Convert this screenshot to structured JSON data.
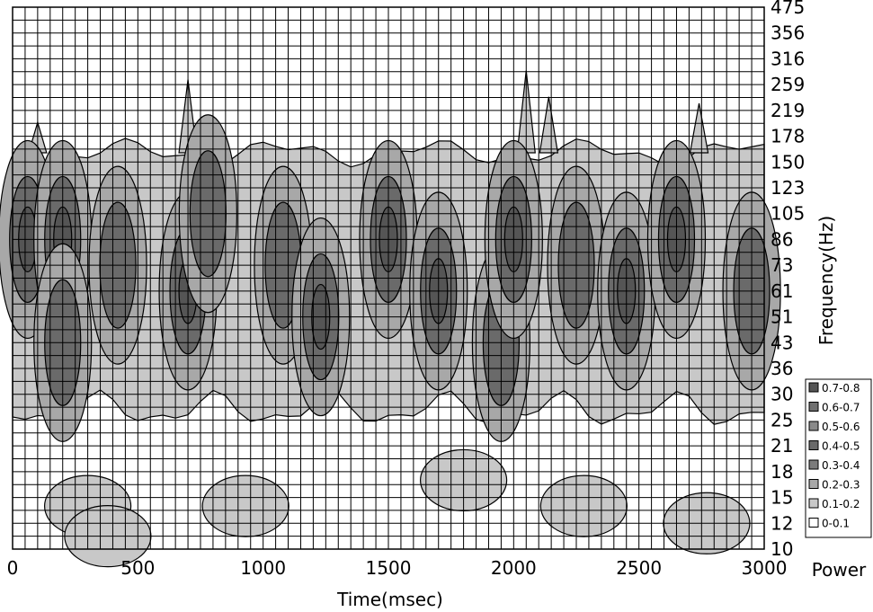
{
  "chart_data": {
    "type": "heatmap",
    "subtype": "contour time-frequency power map",
    "xlabel": "Time(msec)",
    "ylabel": "Frequency(Hz)",
    "legend_title": "Power",
    "legend_placement": "right",
    "grid": true,
    "xlim": [
      0,
      3000
    ],
    "x_ticks": [
      0,
      500,
      1000,
      1500,
      2000,
      2500,
      3000
    ],
    "x_tick_labels": [
      "0",
      "500",
      "1000",
      "1500",
      "2000",
      "2500",
      "3000"
    ],
    "y_tick_labels": [
      "10",
      "12",
      "15",
      "18",
      "21",
      "25",
      "30",
      "36",
      "43",
      "51",
      "61",
      "73",
      "86",
      "105",
      "123",
      "150",
      "178",
      "219",
      "259",
      "316",
      "356",
      "475"
    ],
    "y_ticks_hz": [
      10,
      12,
      15,
      18,
      21,
      25,
      30,
      36,
      43,
      51,
      61,
      73,
      86,
      105,
      123,
      150,
      178,
      219,
      259,
      316,
      356,
      475
    ],
    "legend": [
      {
        "label": "0.7-0.8",
        "color": "#555555"
      },
      {
        "label": "0.6-0.7",
        "color": "#707070"
      },
      {
        "label": "0.5-0.6",
        "color": "#8a8a8a"
      },
      {
        "label": "0.4-0.5",
        "color": "#6a6a6a"
      },
      {
        "label": "0.3-0.4",
        "color": "#7c7c7c"
      },
      {
        "label": "0.2-0.3",
        "color": "#a8a8a8"
      },
      {
        "label": "0.1-0.2",
        "color": "#c8c8c8"
      },
      {
        "label": "0-0.1",
        "color": "#ffffff"
      }
    ],
    "blobs": [
      {
        "t": 60,
        "f": 86,
        "level": 5
      },
      {
        "t": 200,
        "f": 86,
        "level": 5
      },
      {
        "t": 200,
        "f": 43,
        "level": 3
      },
      {
        "t": 420,
        "f": 73,
        "level": 4
      },
      {
        "t": 700,
        "f": 61,
        "level": 5
      },
      {
        "t": 780,
        "f": 105,
        "level": 4
      },
      {
        "t": 1080,
        "f": 73,
        "level": 4
      },
      {
        "t": 1230,
        "f": 51,
        "level": 5
      },
      {
        "t": 1500,
        "f": 86,
        "level": 5
      },
      {
        "t": 1700,
        "f": 61,
        "level": 5
      },
      {
        "t": 1950,
        "f": 43,
        "level": 4
      },
      {
        "t": 2000,
        "f": 86,
        "level": 5
      },
      {
        "t": 2250,
        "f": 73,
        "level": 4
      },
      {
        "t": 2450,
        "f": 61,
        "level": 5
      },
      {
        "t": 2650,
        "f": 86,
        "level": 5
      },
      {
        "t": 2950,
        "f": 61,
        "level": 4
      }
    ]
  }
}
